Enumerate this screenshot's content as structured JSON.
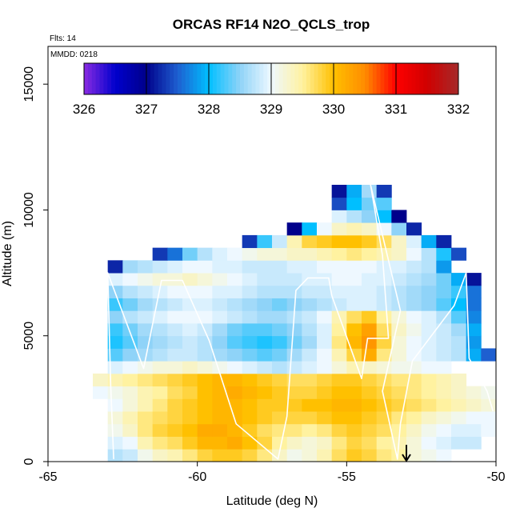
{
  "chart_data": {
    "type": "heatmap",
    "title": "ORCAS RF14 N2O_QCLS_trop",
    "flights_label": "Flts: 14",
    "date_label": "MMDD: 0218",
    "xlabel": "Latitude (deg N)",
    "ylabel": "Altitude (m)",
    "xlim": [
      -65,
      -50
    ],
    "ylim": [
      0,
      16500
    ],
    "xticks": [
      -65,
      -60,
      -55,
      -50
    ],
    "xtick_labels": [
      "-65",
      "-60",
      "-55",
      "-50"
    ],
    "yticks": [
      0,
      5000,
      10000,
      15000
    ],
    "ytick_labels": [
      "0",
      "5000",
      "10000",
      "15000"
    ],
    "colorbar": {
      "min": 326,
      "max": 332,
      "ticks": [
        326,
        327,
        328,
        329,
        330,
        331,
        332
      ],
      "tick_labels": [
        "326",
        "327",
        "328",
        "329",
        "330",
        "331",
        "332"
      ],
      "stops": [
        {
          "v": 326.0,
          "c": "#8a2be2"
        },
        {
          "v": 326.5,
          "c": "#0000cd"
        },
        {
          "v": 327.0,
          "c": "#00008b"
        },
        {
          "v": 327.5,
          "c": "#1e5fd0"
        },
        {
          "v": 328.0,
          "c": "#00bfff"
        },
        {
          "v": 328.5,
          "c": "#8fd3f8"
        },
        {
          "v": 329.0,
          "c": "#eef8ff"
        },
        {
          "v": 329.5,
          "c": "#fff2a0"
        },
        {
          "v": 330.0,
          "c": "#ffc000"
        },
        {
          "v": 330.5,
          "c": "#ff8c00"
        },
        {
          "v": 331.0,
          "c": "#ff0000"
        },
        {
          "v": 331.5,
          "c": "#d00000"
        },
        {
          "v": 332.0,
          "c": "#a52a2a"
        }
      ]
    },
    "grid": false,
    "arrow_marker_lat": -53.0,
    "flight_track": [
      [
        -62.8,
        100
      ],
      [
        -62.9,
        3000
      ],
      [
        -63.0,
        7500
      ],
      [
        -61.8,
        3700
      ],
      [
        -61.2,
        7200
      ],
      [
        -60.5,
        7200
      ],
      [
        -59.6,
        4800
      ],
      [
        -58.7,
        1500
      ],
      [
        -57.3,
        100
      ],
      [
        -57.0,
        1800
      ],
      [
        -56.7,
        6800
      ],
      [
        -56.3,
        7300
      ],
      [
        -55.6,
        7300
      ],
      [
        -55.5,
        6600
      ],
      [
        -54.5,
        3300
      ],
      [
        -54.3,
        4900
      ],
      [
        -53.6,
        4900
      ],
      [
        -53.8,
        8200
      ],
      [
        -54.2,
        11000
      ],
      [
        -53.2,
        6000
      ],
      [
        -53.8,
        2800
      ],
      [
        -53.3,
        100
      ],
      [
        -53.2,
        1500
      ],
      [
        -52.8,
        4000
      ],
      [
        -51.4,
        6200
      ],
      [
        -51.0,
        7500
      ],
      [
        -50.9,
        4100
      ],
      [
        -50.3,
        2800
      ],
      [
        -50.1,
        2000
      ]
    ],
    "cells": {
      "lat_edges": [
        -63.5,
        -63.0,
        -62.5,
        -62.0,
        -61.5,
        -61.0,
        -60.5,
        -60.0,
        -59.5,
        -59.0,
        -58.5,
        -58.0,
        -57.5,
        -57.0,
        -56.5,
        -56.0,
        -55.5,
        -55.0,
        -54.5,
        -54.0,
        -53.5,
        -53.0,
        -52.5,
        -52.0,
        -51.5,
        -51.0,
        -50.5,
        -50.0
      ],
      "alt_edges": [
        0,
        500,
        1000,
        1500,
        2000,
        2500,
        3000,
        3500,
        4000,
        4500,
        5000,
        5500,
        6000,
        6500,
        7000,
        7500,
        8000,
        8500,
        9000,
        9500,
        10000,
        10500,
        11000
      ],
      "values": [
        [
          null,
          328.7,
          328.8,
          329.1,
          329.3,
          329.4,
          329.6,
          329.8,
          329.9,
          329.9,
          329.8,
          329.6,
          329.3,
          329.1,
          329.2,
          329.4,
          329.7,
          329.9,
          329.8,
          329.6,
          329.5,
          329.2,
          329.1,
          329.0,
          null,
          null,
          null
        ],
        [
          null,
          328.9,
          329.0,
          329.4,
          329.6,
          329.7,
          329.9,
          330.1,
          330.1,
          330.2,
          330.0,
          329.8,
          329.5,
          329.3,
          329.2,
          329.3,
          329.6,
          329.8,
          329.7,
          329.5,
          329.4,
          329.2,
          329.0,
          328.9,
          328.8,
          328.8,
          null
        ],
        [
          null,
          329.1,
          329.3,
          329.6,
          329.8,
          329.9,
          330.0,
          330.2,
          330.2,
          330.1,
          329.9,
          329.7,
          329.6,
          329.6,
          329.5,
          329.6,
          329.8,
          329.9,
          329.8,
          329.7,
          329.5,
          329.3,
          329.1,
          329.0,
          328.9,
          328.9,
          329.0
        ],
        [
          null,
          329.2,
          329.4,
          329.6,
          329.7,
          329.8,
          329.9,
          330.0,
          330.1,
          330.1,
          330.0,
          329.9,
          329.8,
          329.8,
          329.8,
          329.9,
          330.0,
          330.0,
          329.9,
          329.8,
          329.6,
          329.5,
          329.3,
          329.2,
          329.1,
          329.0,
          329.0
        ],
        [
          null,
          329.0,
          329.2,
          329.4,
          329.6,
          329.8,
          329.9,
          330.0,
          330.1,
          330.1,
          330.0,
          329.9,
          329.9,
          329.9,
          330.0,
          330.0,
          330.1,
          330.1,
          330.0,
          329.9,
          329.8,
          329.7,
          329.6,
          329.5,
          329.4,
          329.3,
          329.2
        ],
        [
          329.0,
          329.1,
          329.2,
          329.4,
          329.5,
          329.7,
          329.8,
          330.0,
          330.1,
          330.2,
          330.1,
          330.0,
          329.9,
          329.8,
          329.8,
          329.9,
          330.0,
          330.0,
          329.9,
          329.8,
          329.7,
          329.6,
          329.5,
          329.4,
          329.3,
          329.2,
          329.1
        ],
        [
          329.3,
          329.4,
          329.5,
          329.6,
          329.7,
          329.8,
          329.9,
          330.0,
          330.1,
          330.1,
          330.0,
          329.9,
          329.8,
          329.7,
          329.7,
          329.8,
          329.9,
          329.9,
          329.8,
          329.7,
          329.6,
          329.6,
          329.5,
          329.4,
          329.3,
          null,
          null
        ],
        [
          null,
          328.9,
          329.0,
          329.1,
          329.2,
          329.2,
          329.3,
          329.2,
          329.1,
          329.0,
          328.9,
          328.8,
          328.7,
          328.8,
          328.9,
          329.0,
          329.2,
          329.4,
          329.3,
          329.2,
          329.1,
          329.1,
          329.0,
          329.0,
          null,
          null,
          null
        ],
        [
          null,
          328.3,
          328.5,
          328.6,
          328.7,
          328.8,
          328.8,
          328.7,
          328.6,
          328.5,
          328.4,
          328.3,
          328.4,
          328.6,
          328.8,
          329.0,
          329.4,
          329.8,
          330.2,
          329.6,
          329.2,
          329.0,
          328.9,
          328.8,
          328.7,
          327.9,
          327.5
        ],
        [
          null,
          328.1,
          328.3,
          328.5,
          328.6,
          328.7,
          328.8,
          328.7,
          328.5,
          328.3,
          328.2,
          328.1,
          328.2,
          328.4,
          328.6,
          328.9,
          329.6,
          330.1,
          330.4,
          329.8,
          329.2,
          329.0,
          328.9,
          328.8,
          328.7,
          327.8,
          null
        ],
        [
          null,
          328.2,
          328.4,
          328.6,
          328.7,
          328.8,
          328.9,
          328.8,
          328.6,
          328.4,
          328.3,
          328.3,
          328.4,
          328.5,
          328.7,
          328.9,
          329.5,
          330.0,
          330.3,
          329.7,
          329.3,
          329.1,
          328.9,
          328.8,
          328.6,
          327.9,
          null
        ],
        [
          null,
          328.5,
          328.7,
          328.8,
          328.9,
          329.0,
          329.0,
          329.0,
          328.9,
          328.8,
          328.7,
          328.6,
          328.6,
          328.7,
          328.8,
          329.0,
          329.4,
          329.7,
          329.9,
          329.5,
          329.2,
          329.0,
          328.9,
          328.7,
          328.3,
          327.7,
          null
        ],
        [
          null,
          328.2,
          328.4,
          328.6,
          328.7,
          328.8,
          328.9,
          328.9,
          328.8,
          328.7,
          328.6,
          328.5,
          328.4,
          328.5,
          328.6,
          328.7,
          328.8,
          328.9,
          328.9,
          328.8,
          328.7,
          328.6,
          328.5,
          328.3,
          328.0,
          327.6,
          null
        ],
        [
          null,
          328.5,
          328.7,
          328.8,
          328.9,
          329.0,
          329.0,
          329.0,
          328.9,
          328.9,
          328.8,
          328.7,
          328.7,
          328.7,
          328.8,
          328.8,
          328.9,
          328.9,
          328.9,
          328.8,
          328.7,
          328.6,
          328.5,
          328.4,
          328.2,
          327.6,
          null
        ],
        [
          null,
          328.9,
          329.0,
          329.1,
          329.2,
          329.2,
          329.3,
          329.2,
          329.1,
          329.0,
          328.9,
          328.8,
          328.8,
          328.8,
          328.9,
          328.9,
          329.0,
          329.0,
          328.9,
          328.9,
          328.8,
          328.7,
          328.6,
          328.4,
          327.9,
          327.1,
          null
        ],
        [
          null,
          327.2,
          328.6,
          328.7,
          328.8,
          328.9,
          329.0,
          329.0,
          328.9,
          328.9,
          328.8,
          328.8,
          328.8,
          328.9,
          328.9,
          329.0,
          329.0,
          329.0,
          329.0,
          328.9,
          328.9,
          328.8,
          328.7,
          327.8,
          null,
          null,
          null
        ],
        [
          null,
          null,
          null,
          null,
          327.3,
          327.6,
          328.4,
          328.7,
          328.9,
          329.0,
          329.1,
          329.2,
          329.2,
          329.3,
          329.3,
          329.4,
          329.5,
          329.6,
          329.5,
          329.4,
          329.3,
          329.0,
          328.7,
          328.1,
          327.4,
          null,
          null
        ],
        [
          null,
          null,
          null,
          null,
          null,
          null,
          null,
          null,
          null,
          null,
          327.3,
          328.2,
          328.8,
          329.4,
          329.8,
          329.9,
          330.0,
          330.0,
          329.9,
          329.7,
          329.3,
          328.9,
          327.9,
          327.2,
          null,
          null,
          null
        ],
        [
          null,
          null,
          null,
          null,
          null,
          null,
          null,
          null,
          null,
          null,
          null,
          null,
          null,
          327.0,
          328.0,
          329.0,
          329.3,
          329.4,
          329.3,
          329.0,
          328.5,
          327.2,
          null,
          null,
          null,
          null,
          null
        ],
        [
          null,
          null,
          null,
          null,
          null,
          null,
          null,
          null,
          null,
          null,
          null,
          null,
          null,
          null,
          null,
          null,
          328.9,
          328.7,
          328.5,
          328.0,
          327.0,
          null,
          null,
          null,
          null,
          null,
          null
        ],
        [
          null,
          null,
          null,
          null,
          null,
          null,
          null,
          null,
          null,
          null,
          null,
          null,
          null,
          null,
          null,
          null,
          327.4,
          328.0,
          328.4,
          328.3,
          null,
          null,
          null,
          null,
          null,
          null,
          null
        ],
        [
          null,
          null,
          null,
          null,
          null,
          null,
          null,
          null,
          null,
          null,
          null,
          null,
          null,
          null,
          null,
          null,
          327.1,
          327.9,
          328.6,
          327.3,
          null,
          null,
          null,
          null,
          null,
          null,
          null
        ]
      ]
    }
  }
}
